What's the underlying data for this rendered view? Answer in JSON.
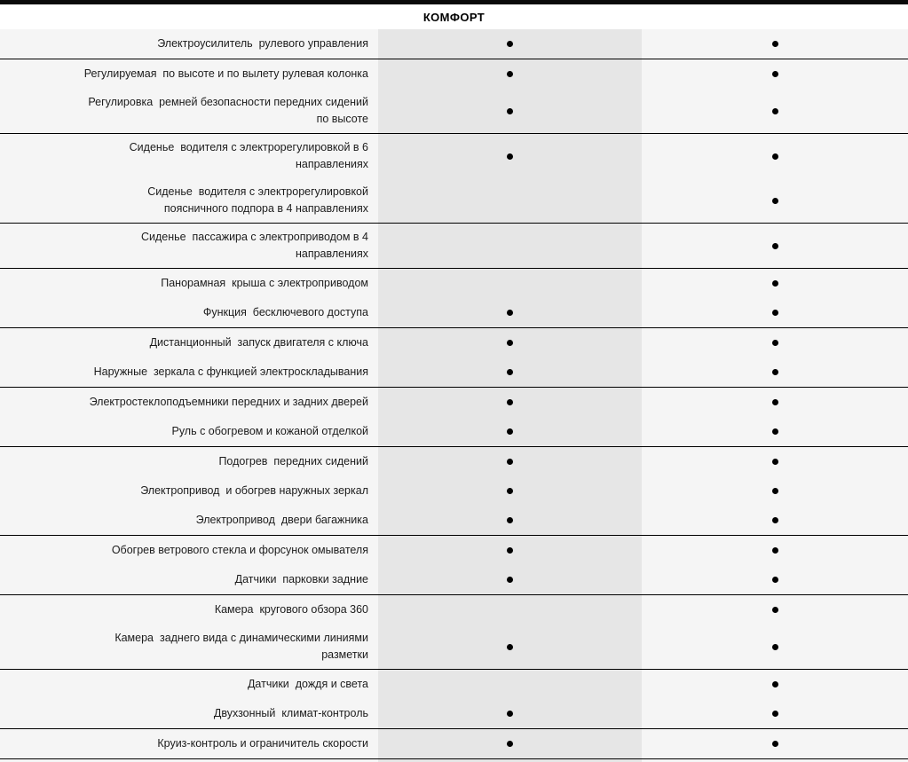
{
  "header": {
    "title": "КОМФОРТ"
  },
  "symbols": {
    "available_dot": "●"
  },
  "colors": {
    "top_bar": "#0a0a0a",
    "header_bg": "#ffffff",
    "row_bg": "#f5f5f5",
    "highlight_column_bg": "#e6e6e6",
    "separator_line": "#000000",
    "text": "#1c1c1c"
  },
  "table": {
    "sections": [
      {
        "rows": [
          {
            "label": "Электроусилитель  рулевого управления",
            "col1": true,
            "col2": true
          }
        ]
      },
      {
        "rows": [
          {
            "label": "Регулируемая  по высоте и по вылету рулевая колонка",
            "col1": true,
            "col2": true
          },
          {
            "label": "Регулировка  ремней безопасности передних сидений\nпо высоте",
            "col1": true,
            "col2": true
          }
        ]
      },
      {
        "rows": [
          {
            "label": "Сиденье  водителя с электрорегулировкой в 6\nнаправлениях",
            "col1": true,
            "col2": true
          },
          {
            "label": "Сиденье  водителя с электрорегулировкой\nпоясничного подпора в 4 направлениях",
            "col1": false,
            "col2": true
          }
        ]
      },
      {
        "rows": [
          {
            "label": "Сиденье  пассажира с электроприводом в 4\nнаправлениях",
            "col1": false,
            "col2": true
          }
        ]
      },
      {
        "rows": [
          {
            "label": "Панорамная  крыша с электроприводом",
            "col1": false,
            "col2": true
          },
          {
            "label": "Функция  бесключевого доступа",
            "col1": true,
            "col2": true
          }
        ]
      },
      {
        "rows": [
          {
            "label": "Дистанционный  запуск двигателя с ключа",
            "col1": true,
            "col2": true
          },
          {
            "label": "Наружные  зеркала с функцией электроскладывания",
            "col1": true,
            "col2": true
          }
        ]
      },
      {
        "rows": [
          {
            "label": "Электростеклоподъемники передних и задних дверей",
            "col1": true,
            "col2": true
          },
          {
            "label": "Руль с обогревом и кожаной отделкой",
            "col1": true,
            "col2": true
          }
        ]
      },
      {
        "rows": [
          {
            "label": "Подогрев  передних сидений",
            "col1": true,
            "col2": true
          },
          {
            "label": "Электропривод  и обогрев наружных зеркал",
            "col1": true,
            "col2": true
          },
          {
            "label": "Электропривод  двери багажника",
            "col1": true,
            "col2": true
          }
        ]
      },
      {
        "rows": [
          {
            "label": "Обогрев ветрового стекла и форсунок омывателя",
            "col1": true,
            "col2": true
          },
          {
            "label": "Датчики  парковки задние",
            "col1": true,
            "col2": true
          }
        ]
      },
      {
        "rows": [
          {
            "label": "Камера  кругового обзора 360",
            "col1": false,
            "col2": true
          },
          {
            "label": "Камера  заднего вида с динамическими линиями\nразметки",
            "col1": true,
            "col2": true
          }
        ]
      },
      {
        "rows": [
          {
            "label": "Датчики  дождя и света",
            "col1": false,
            "col2": true
          },
          {
            "label": "Двухзонный  климат-контроль",
            "col1": true,
            "col2": true
          }
        ]
      },
      {
        "rows": [
          {
            "label": "Круиз-контроль и ограничитель скорости",
            "col1": true,
            "col2": true
          }
        ]
      }
    ]
  }
}
